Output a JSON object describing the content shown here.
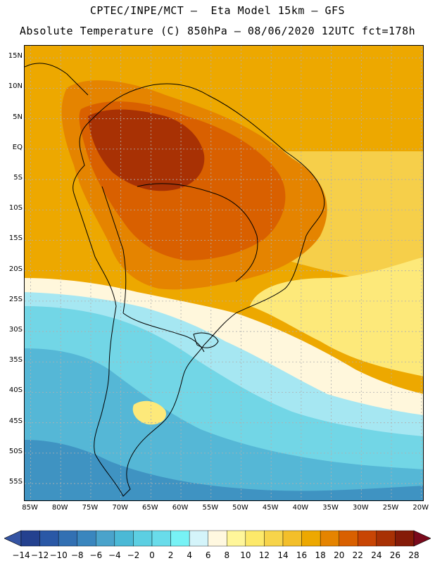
{
  "header": {
    "line1": "CPTEC/INPE/MCT –  Eta Model 15km – GFS",
    "line2": "Absolute Temperature (C) 850hPa – 08/06/2020 12UTC fct=178h"
  },
  "map": {
    "lat_labels": [
      "15N",
      "10N",
      "5N",
      "EQ",
      "5S",
      "10S",
      "15S",
      "20S",
      "25S",
      "30S",
      "35S",
      "40S",
      "45S",
      "50S",
      "55S"
    ],
    "lon_labels": [
      "85W",
      "80W",
      "75W",
      "70W",
      "65W",
      "60W",
      "55W",
      "50W",
      "45W",
      "40W",
      "35W",
      "30W",
      "25W",
      "20W"
    ]
  },
  "colorbar": {
    "labels": [
      "-14",
      "-12",
      "-10",
      "-8",
      "-6",
      "-4",
      "-2",
      "0",
      "2",
      "4",
      "6",
      "8",
      "10",
      "12",
      "14",
      "16",
      "18",
      "20",
      "22",
      "24",
      "26",
      "28"
    ],
    "colors": [
      "#24418f",
      "#2a58a6",
      "#3270b3",
      "#3a86be",
      "#4aa3cb",
      "#4bb9d6",
      "#5ccfe2",
      "#69dcea",
      "#77f2f5",
      "#d4f4fa",
      "#fff8e0",
      "#fff69a",
      "#fde96a",
      "#f7d44a",
      "#f3bf2a",
      "#eda800",
      "#e58400",
      "#d96000",
      "#c84504",
      "#a83104",
      "#851b08"
    ],
    "under_color": "#3554a3",
    "over_color": "#7a0a1c"
  },
  "field_colors": {
    "cold_deep": "#3f93c2",
    "cold": "#55b7d6",
    "cool": "#72d6e6",
    "chill": "#a6e7f2",
    "neutral": "#fff7dc",
    "mild": "#fde97a",
    "warm": "#f6cf4a",
    "warmer": "#eda800",
    "hot": "#e58400",
    "hotter": "#d96000",
    "hottest": "#a83104"
  }
}
